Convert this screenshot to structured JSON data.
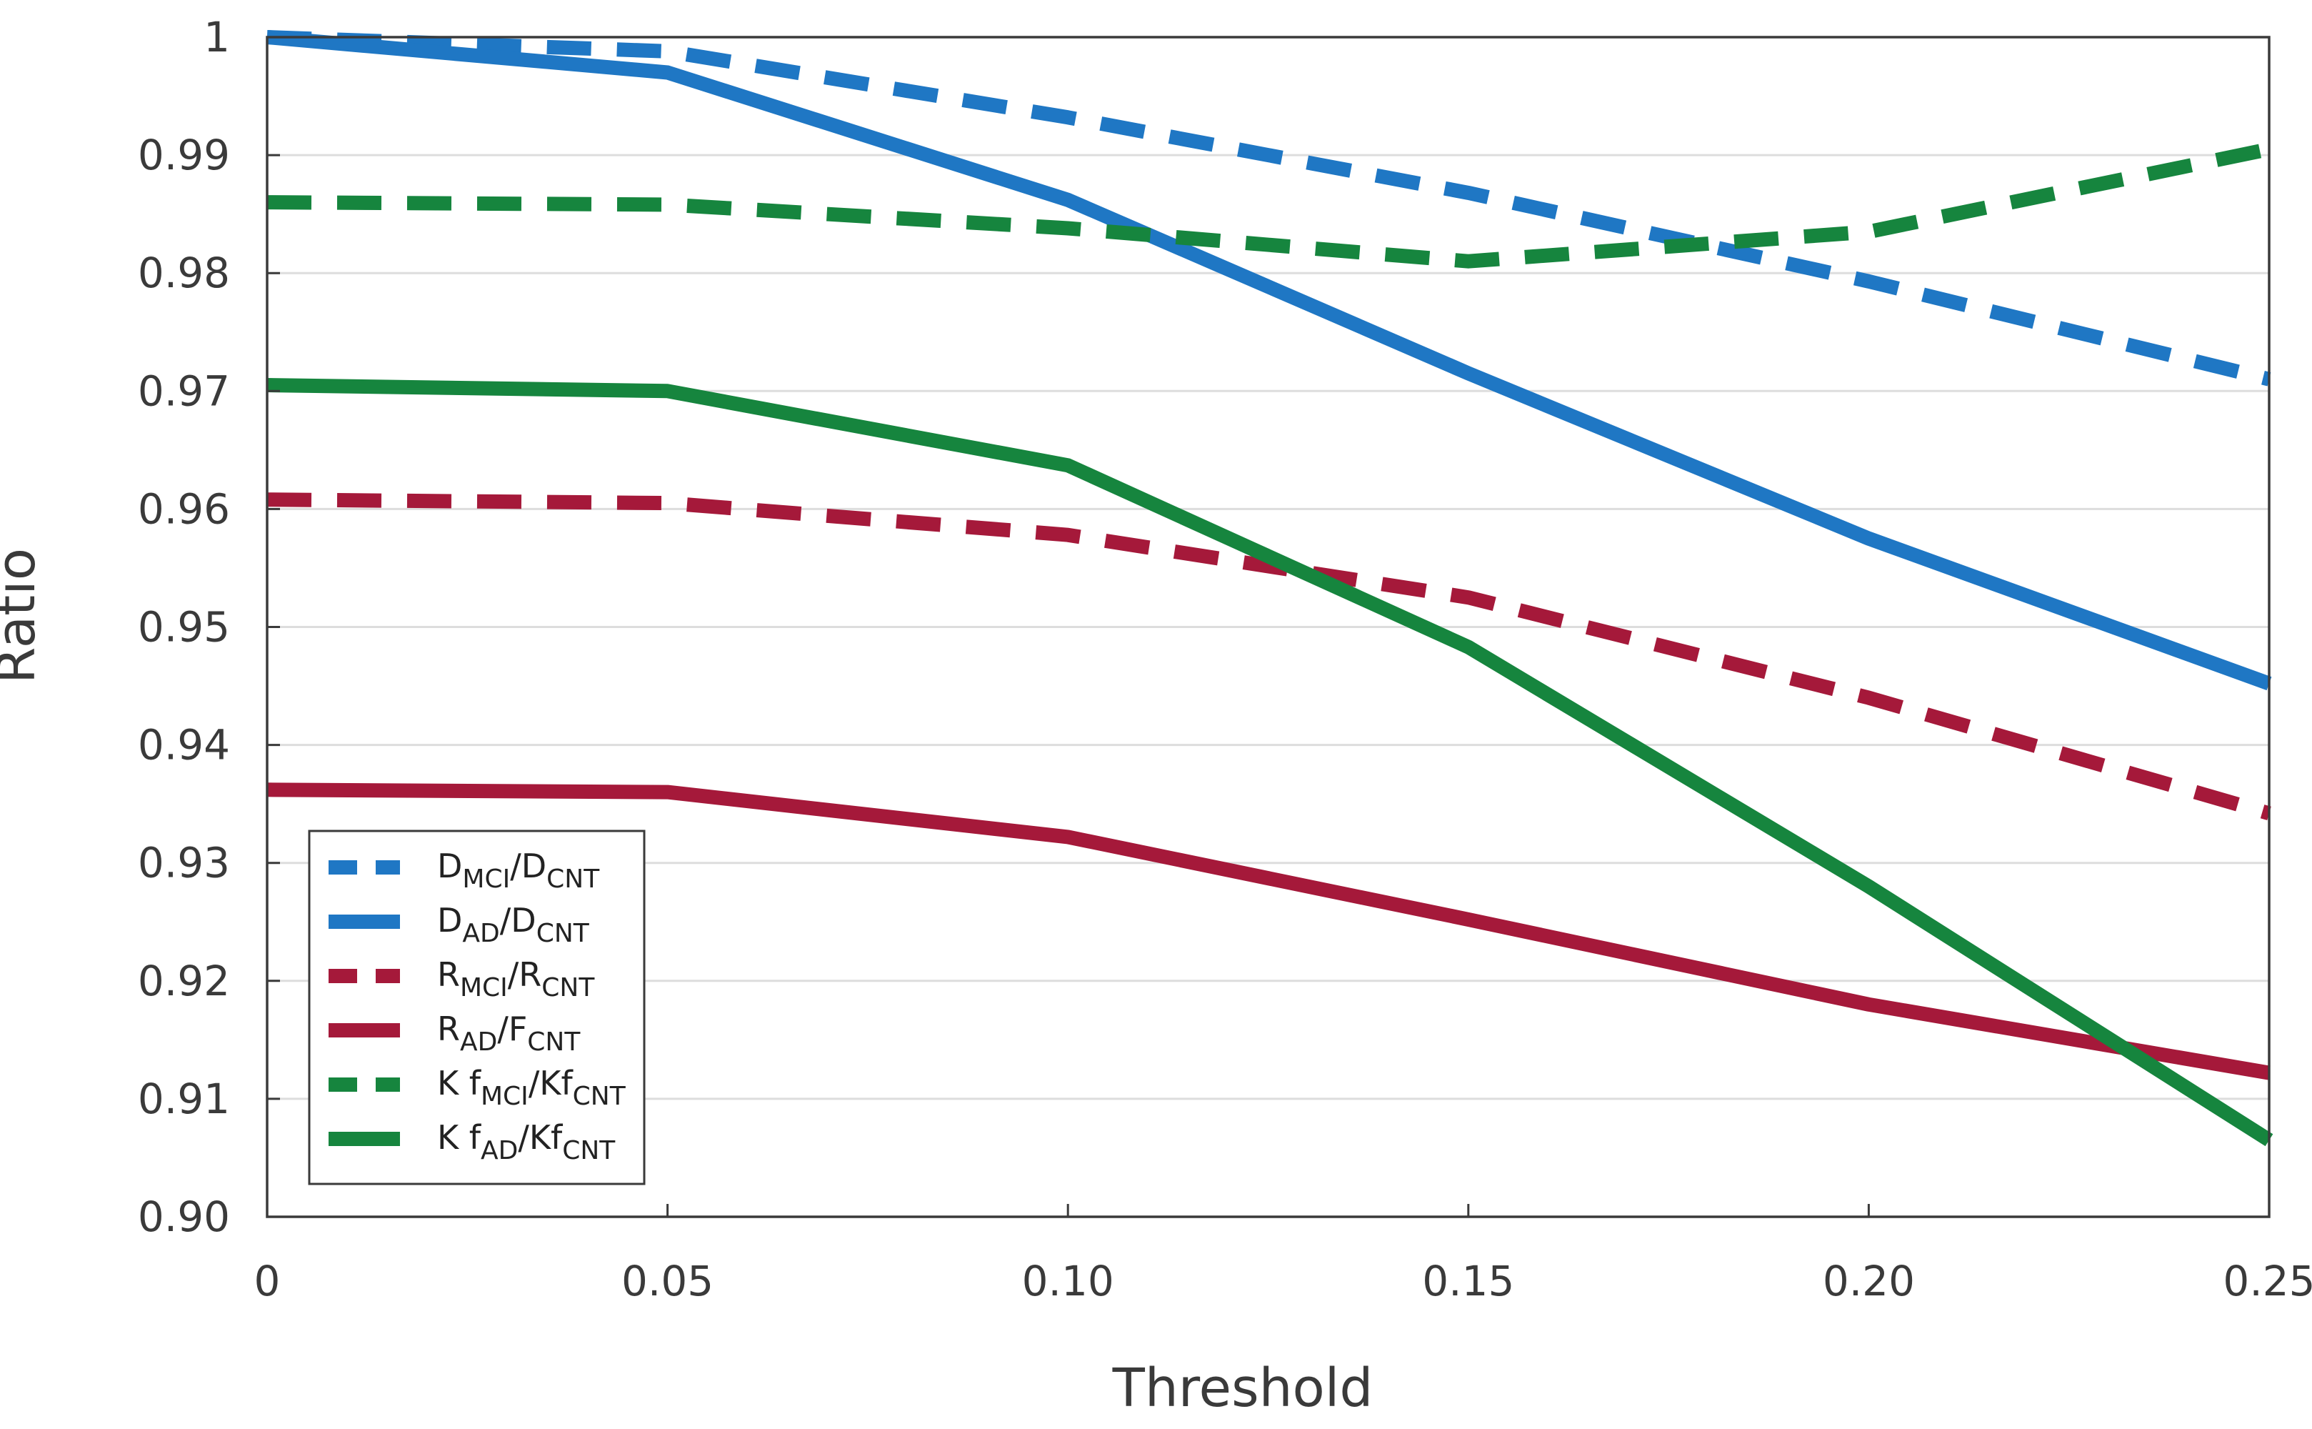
{
  "chart_data": {
    "type": "line",
    "title": "",
    "xlabel": "Threshold",
    "ylabel": "Ratio",
    "x": [
      0,
      0.05,
      0.1,
      0.15,
      0.2,
      0.25
    ],
    "xlim": [
      0,
      0.25
    ],
    "ylim": [
      0.9,
      1.0
    ],
    "x_tick_labels": [
      "0",
      "0.05",
      "0.10",
      "0.15",
      "0.20",
      "0.25"
    ],
    "y_tick_values": [
      0.9,
      0.91,
      0.92,
      0.93,
      0.94,
      0.95,
      0.96,
      0.97,
      0.98,
      0.99,
      1.0
    ],
    "y_tick_labels": [
      "0.90",
      "0.91",
      "0.92",
      "0.93",
      "0.94",
      "0.95",
      "0.96",
      "0.97",
      "0.98",
      "0.99",
      "1"
    ],
    "grid": "horizontal",
    "legend_position": "bottom-left",
    "series": [
      {
        "name": "D_MCI/D_CNT",
        "base": "D",
        "sub1": "MCI",
        "mid": "/D",
        "sub2": "CNT",
        "color": "#1f77c4",
        "style": "dashed",
        "values": [
          1.0,
          0.9988,
          0.9932,
          0.9868,
          0.9793,
          0.971
        ]
      },
      {
        "name": "D_AD/D_CNT",
        "base": "D",
        "sub1": "AD",
        "mid": "/D",
        "sub2": "CNT",
        "color": "#1f77c4",
        "style": "solid",
        "values": [
          1.0,
          0.997,
          0.9862,
          0.9715,
          0.9575,
          0.9452
        ]
      },
      {
        "name": "R_MCI/R_CNT",
        "base": "R",
        "sub1": "MCI",
        "mid": "/R",
        "sub2": "CNT",
        "color": "#a5193a",
        "style": "dashed",
        "values": [
          0.9608,
          0.9605,
          0.9578,
          0.9525,
          0.944,
          0.9342
        ]
      },
      {
        "name": "R_AD/F_CNT",
        "base": "R",
        "sub1": "AD",
        "mid": "/F",
        "sub2": "CNT",
        "color": "#a5193a",
        "style": "solid",
        "values": [
          0.9362,
          0.936,
          0.9322,
          0.9252,
          0.918,
          0.9122
        ]
      },
      {
        "name": "Kf_MCI/Kf_CNT",
        "base": "K f",
        "sub1": "MCI",
        "mid": "/Kf",
        "sub2": "CNT",
        "color": "#16853e",
        "style": "dashed",
        "values": [
          0.986,
          0.9858,
          0.9838,
          0.981,
          0.9835,
          0.9905
        ]
      },
      {
        "name": "Kf_AD/Kf_CNT",
        "base": "K f",
        "sub1": "AD",
        "mid": "/Kf",
        "sub2": "CNT",
        "color": "#16853e",
        "style": "solid",
        "values": [
          0.9705,
          0.97,
          0.9637,
          0.9483,
          0.928,
          0.9065
        ]
      }
    ]
  }
}
